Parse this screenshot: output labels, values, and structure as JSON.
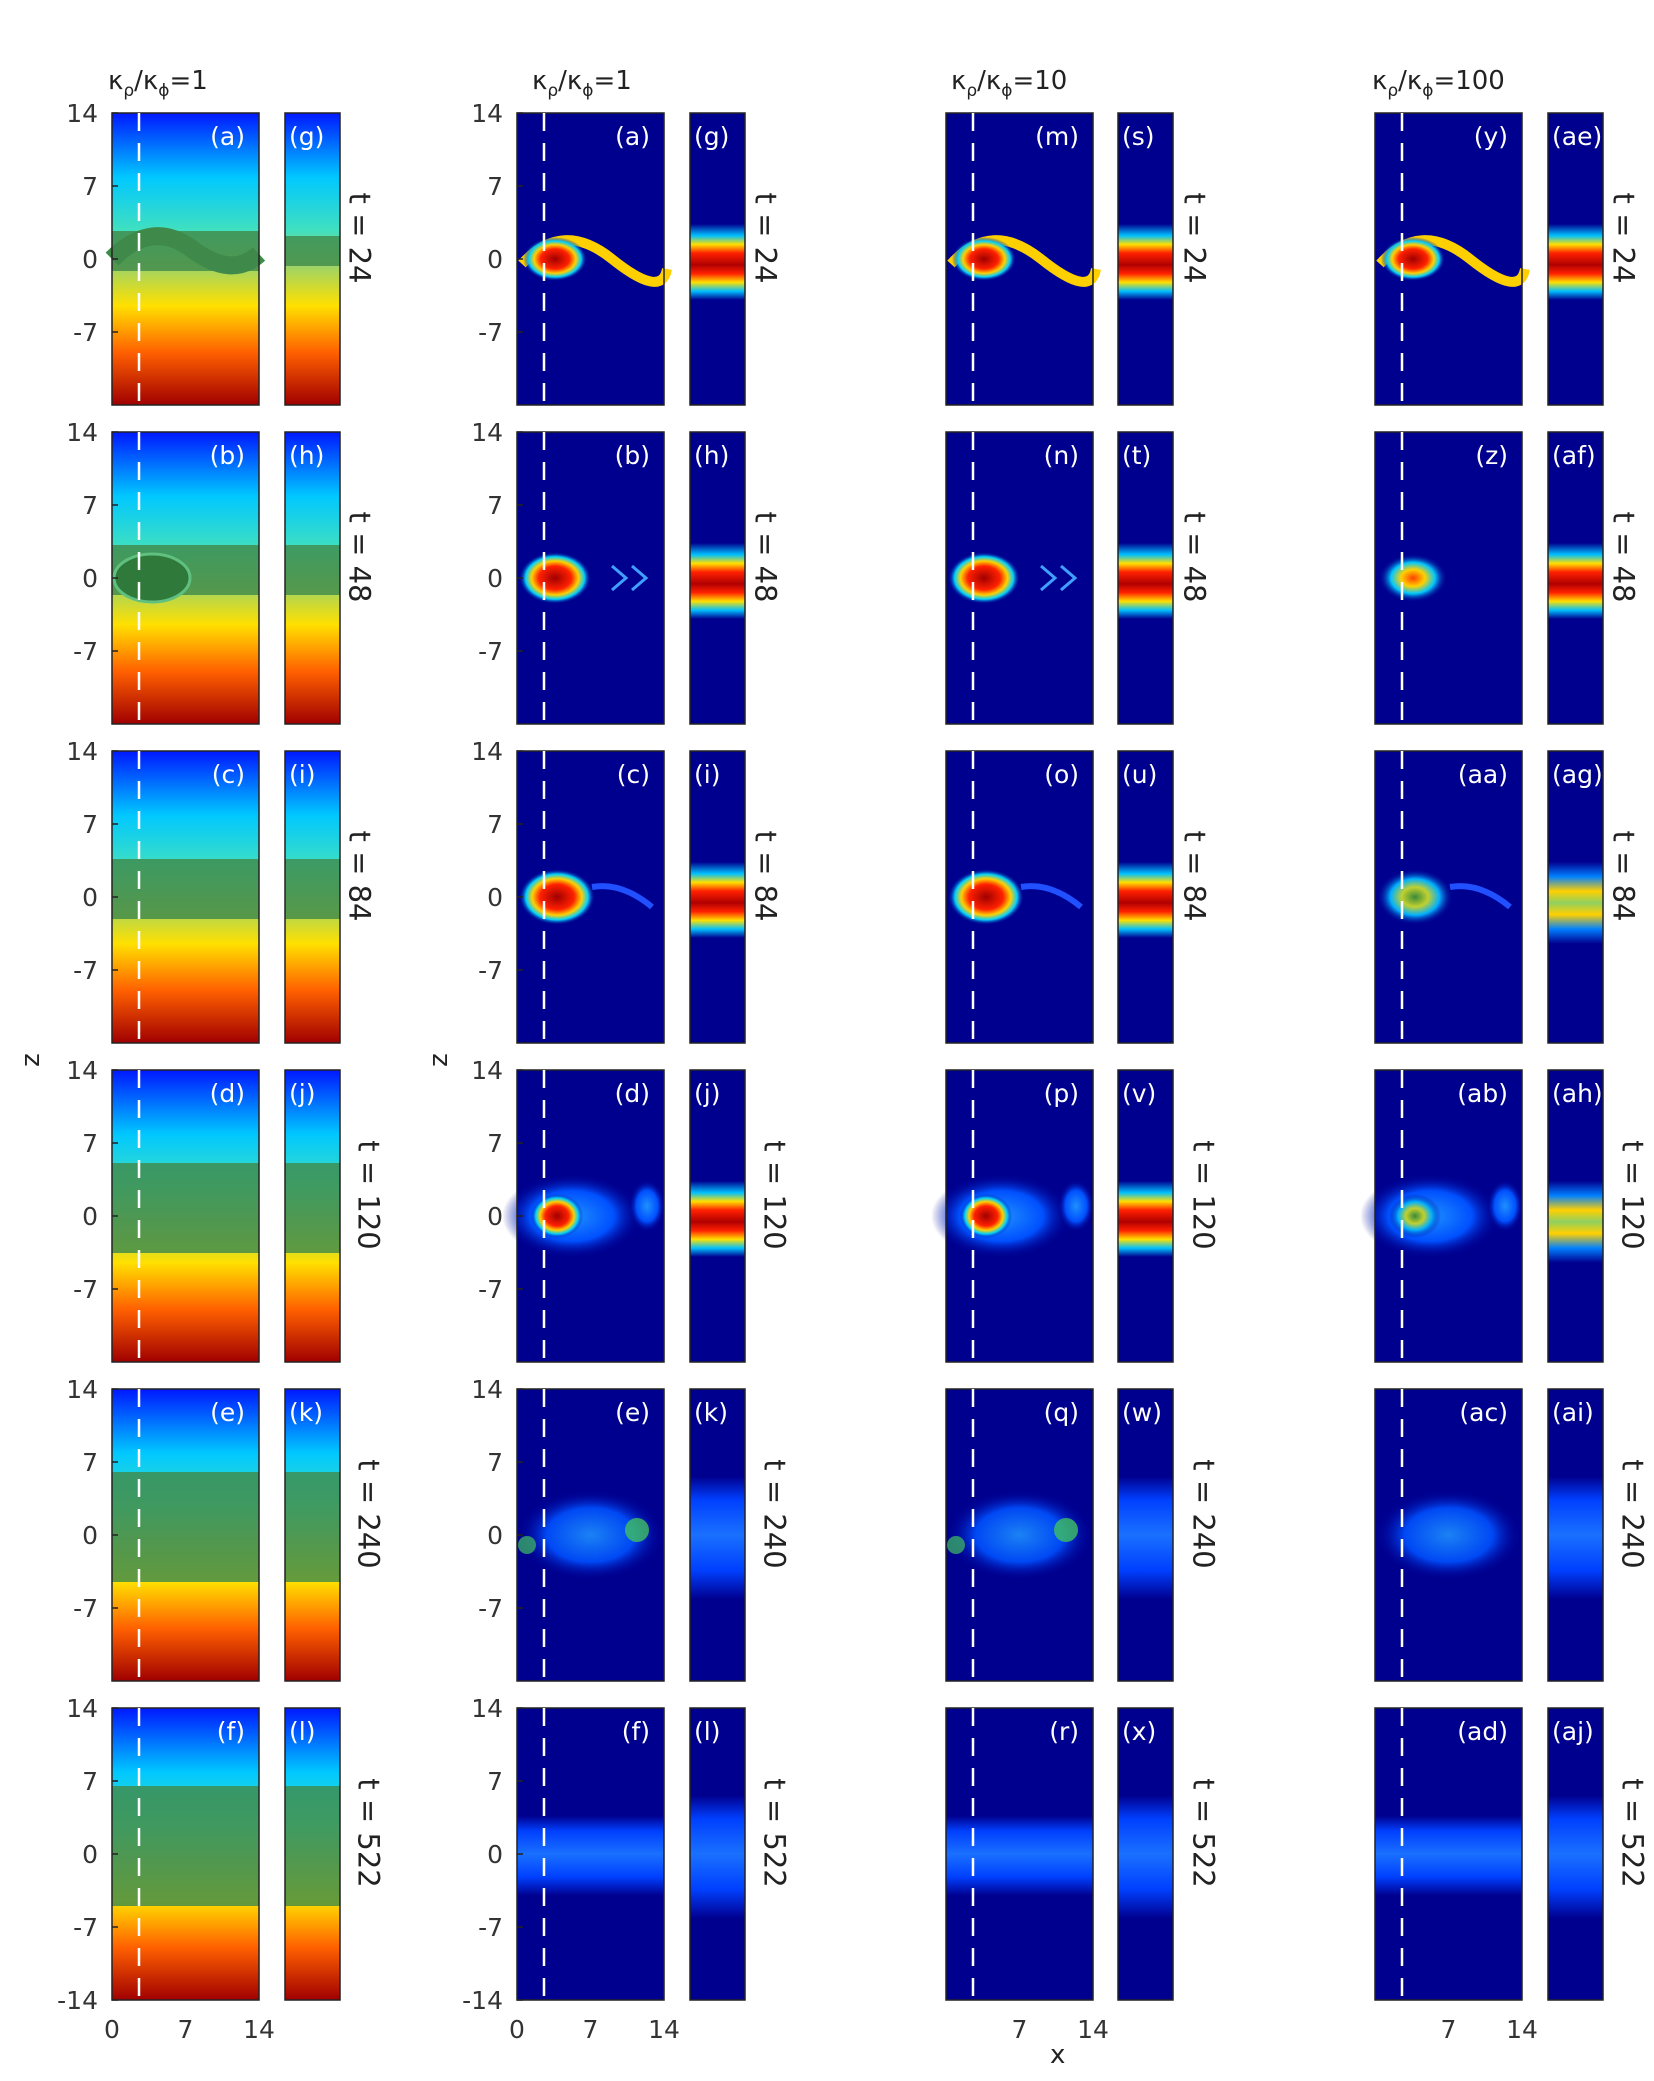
{
  "column_titles": [
    {
      "kappa_rho": "κ",
      "sub_rho": "ρ",
      "slash": "/",
      "kappa_phi": "κ",
      "sub_phi": "ϕ",
      "value": "=1"
    },
    {
      "kappa_rho": "κ",
      "sub_rho": "ρ",
      "slash": "/",
      "kappa_phi": "κ",
      "sub_phi": "ϕ",
      "value": "=1"
    },
    {
      "kappa_rho": "κ",
      "sub_rho": "ρ",
      "slash": "/",
      "kappa_phi": "κ",
      "sub_phi": "ϕ",
      "value": "=10"
    },
    {
      "kappa_rho": "κ",
      "sub_rho": "ρ",
      "slash": "/",
      "kappa_phi": "κ",
      "sub_phi": "ϕ",
      "value": "=100"
    }
  ],
  "time_labels": [
    "t = 24",
    "t = 48",
    "t = 84",
    "t = 120",
    "t = 240",
    "t = 522"
  ],
  "y_ticks": [
    "14",
    "7",
    "0",
    "-7",
    "-14"
  ],
  "x_ticks_full": [
    "0",
    "7",
    "14"
  ],
  "x_ticks_partial": [
    "7",
    "14"
  ],
  "axis_labels": {
    "z": "z",
    "x": "x"
  },
  "panel_labels": {
    "group1_main": [
      "(a)",
      "(b)",
      "(c)",
      "(d)",
      "(e)",
      "(f)"
    ],
    "group1_side": [
      "(g)",
      "(h)",
      "(i)",
      "(j)",
      "(k)",
      "(l)"
    ],
    "group2_main": [
      "(a)",
      "(b)",
      "(c)",
      "(d)",
      "(e)",
      "(f)"
    ],
    "group2_side": [
      "(g)",
      "(h)",
      "(i)",
      "(j)",
      "(k)",
      "(l)"
    ],
    "group3_main": [
      "(m)",
      "(n)",
      "(o)",
      "(p)",
      "(q)",
      "(r)"
    ],
    "group3_side": [
      "(s)",
      "(t)",
      "(u)",
      "(v)",
      "(w)",
      "(x)"
    ],
    "group4_main": [
      "(y)",
      "(z)",
      "(aa)",
      "(ab)",
      "(ac)",
      "(ad)"
    ],
    "group4_side": [
      "(ae)",
      "(af)",
      "(ag)",
      "(ah)",
      "(ai)",
      "(aj)"
    ]
  },
  "colors": {
    "jet_dark_blue": "#00008f",
    "jet_blue": "#0000ff",
    "jet_cyan": "#00ffff",
    "jet_yellow": "#ffff00",
    "jet_red": "#ff0000",
    "jet_dark_red": "#800000",
    "mix_green": "#3f8a4a",
    "dashed_line": "#ffffff"
  }
}
